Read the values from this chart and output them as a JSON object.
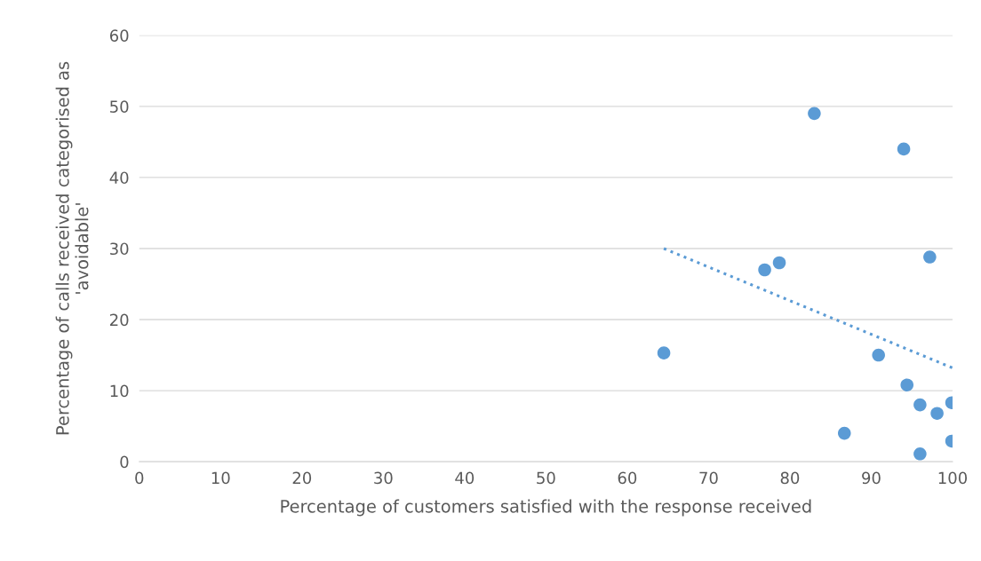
{
  "chart_data": {
    "type": "scatter",
    "xlabel": "Percentage of customers satisfied with the response received",
    "ylabel": "Percentage of calls received categorised as\n'avoidable'",
    "series": [
      {
        "color": "#5b9bd5",
        "x": [
          83,
          94,
          97.2,
          78.7,
          76.9,
          64.5,
          90.9,
          94.4,
          96,
          99.9,
          98.1,
          86.7,
          99.9,
          96
        ],
        "values": [
          49,
          44,
          28.8,
          28,
          27,
          15.3,
          15,
          10.8,
          8,
          8.3,
          6.8,
          4,
          2.9,
          1.1
        ]
      },
      {
        "type": "line",
        "color": "#5b9bd5",
        "line_style": "dotted",
        "marker": "none",
        "x": [
          64.5,
          100
        ],
        "values": [
          30,
          13.2
        ]
      }
    ],
    "xlim": [
      0,
      100
    ],
    "ylim": [
      0,
      60
    ],
    "xticks": [
      0,
      10,
      20,
      30,
      40,
      50,
      60,
      70,
      80,
      90,
      100
    ],
    "yticks": [
      0,
      10,
      20,
      30,
      40,
      50,
      60
    ],
    "grid": "y",
    "marker": "circle"
  }
}
